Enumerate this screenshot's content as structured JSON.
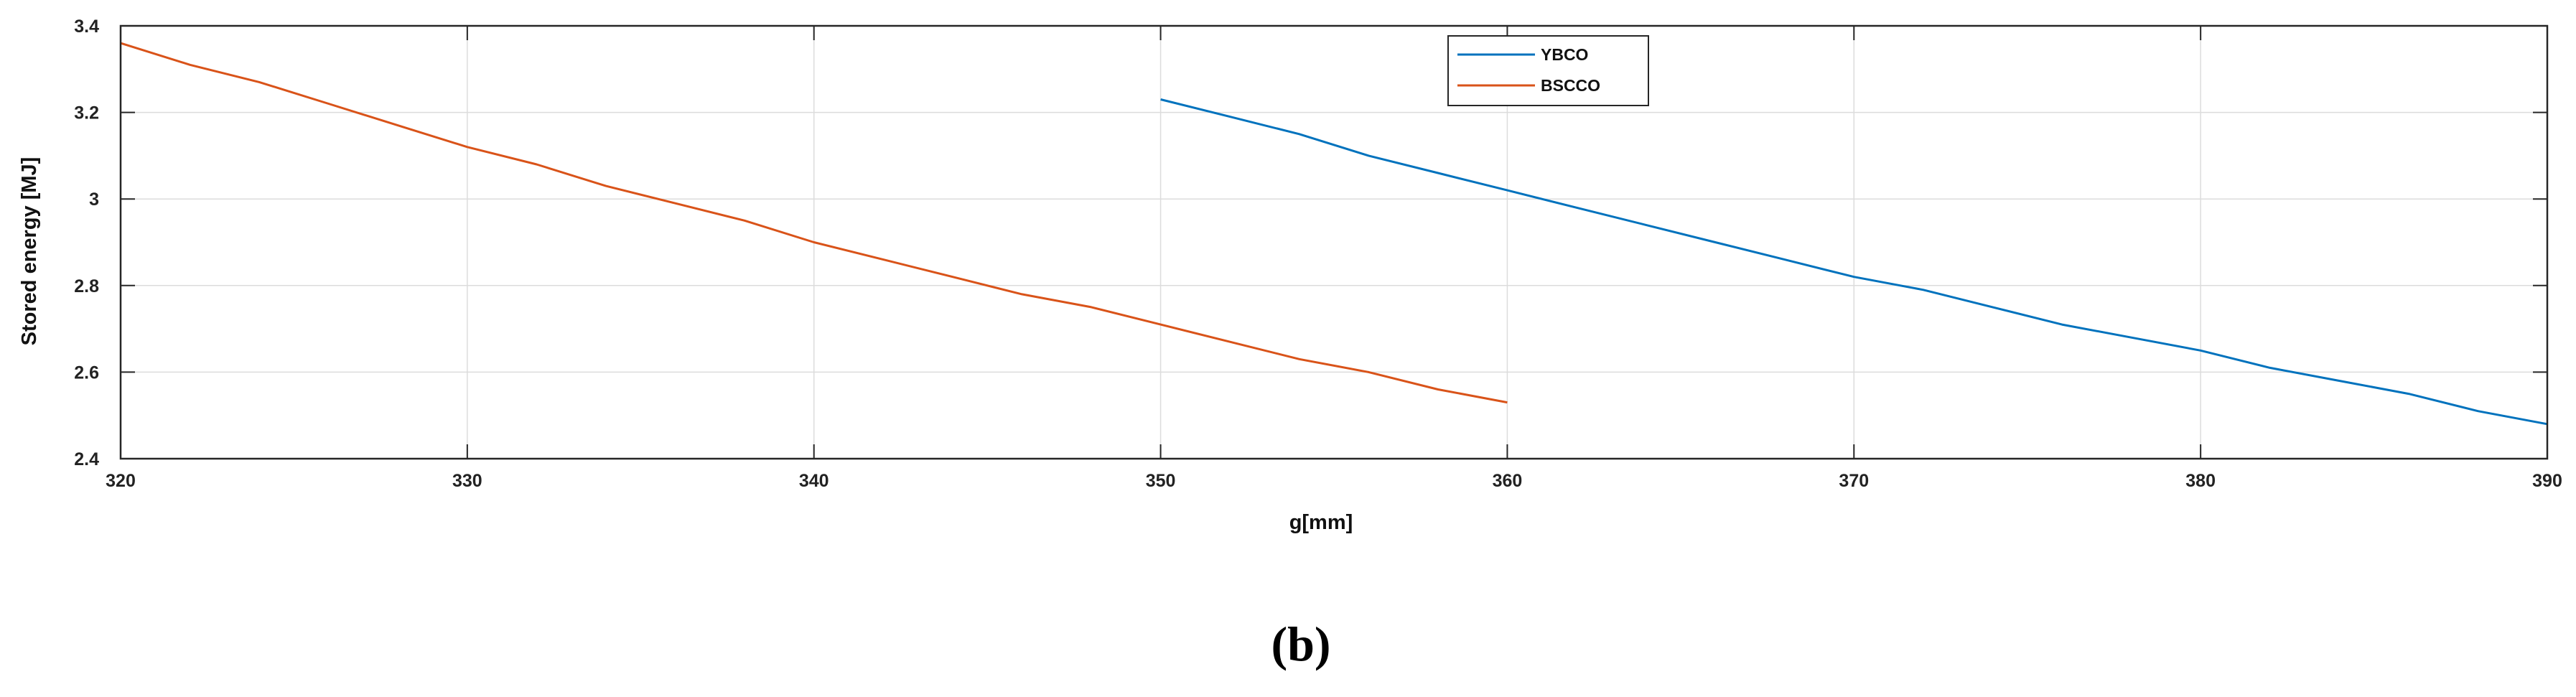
{
  "chart_data": {
    "type": "line",
    "title": "",
    "xlabel": "g[mm]",
    "ylabel": "Stored energy [MJ]",
    "xlim": [
      320,
      390
    ],
    "ylim": [
      2.4,
      3.4
    ],
    "xticks": [
      320,
      330,
      340,
      350,
      360,
      370,
      380,
      390
    ],
    "xtick_labels": [
      "320",
      "330",
      "340",
      "350",
      "360",
      "370",
      "380",
      "390"
    ],
    "yticks": [
      2.4,
      2.6,
      2.8,
      3.0,
      3.2,
      3.4
    ],
    "ytick_labels": [
      "2.4",
      "2.6",
      "2.8",
      "3",
      "3.2",
      "3.4"
    ],
    "grid": true,
    "legend_position": "top-center",
    "series": [
      {
        "name": "YBCO",
        "color": "#0072BD",
        "x": [
          350,
          352,
          354,
          356,
          358,
          360,
          362,
          364,
          366,
          368,
          370,
          372,
          374,
          376,
          378,
          380,
          382,
          384,
          386,
          388,
          390
        ],
        "y": [
          3.23,
          3.19,
          3.15,
          3.1,
          3.06,
          3.02,
          2.98,
          2.94,
          2.9,
          2.86,
          2.82,
          2.79,
          2.75,
          2.71,
          2.68,
          2.65,
          2.61,
          2.58,
          2.55,
          2.51,
          2.48
        ]
      },
      {
        "name": "BSCCO",
        "color": "#D95319",
        "x": [
          320,
          322,
          324,
          326,
          328,
          330,
          332,
          334,
          336,
          338,
          340,
          342,
          344,
          346,
          348,
          350,
          352,
          354,
          356,
          358,
          360
        ],
        "y": [
          3.36,
          3.31,
          3.27,
          3.22,
          3.17,
          3.12,
          3.08,
          3.03,
          2.99,
          2.95,
          2.9,
          2.86,
          2.82,
          2.78,
          2.75,
          2.71,
          2.67,
          2.63,
          2.6,
          2.56,
          2.53
        ]
      }
    ]
  },
  "caption": "(b)"
}
